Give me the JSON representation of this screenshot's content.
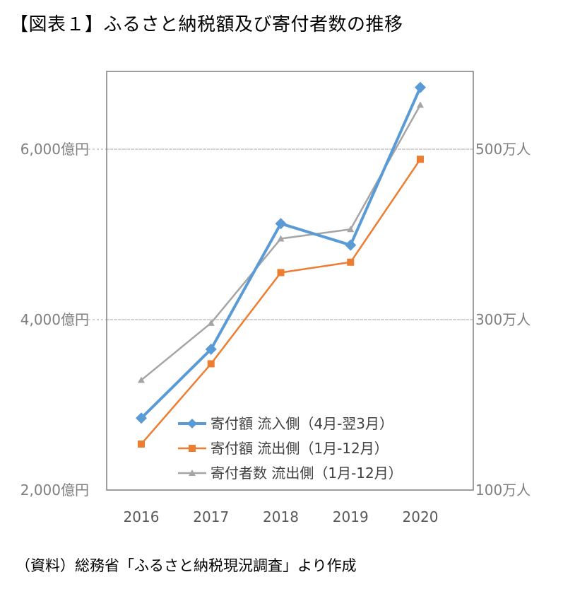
{
  "title": "【図表１】ふるさと納税額及び寄付者数の推移",
  "source": "（資料）総務省「ふるさと納税現況調査」より作成",
  "chart_data": {
    "type": "line",
    "categories": [
      "2016",
      "2017",
      "2018",
      "2019",
      "2020"
    ],
    "y_left": {
      "ticks": [
        {
          "value": 2000,
          "label": "2,000億円"
        },
        {
          "value": 4000,
          "label": "4,000億円"
        },
        {
          "value": 6000,
          "label": "6,000億円"
        }
      ],
      "range": [
        2000,
        6800
      ]
    },
    "y_right": {
      "ticks": [
        {
          "value": 100,
          "label": "100万人"
        },
        {
          "value": 300,
          "label": "300万人"
        },
        {
          "value": 500,
          "label": "500万人"
        }
      ],
      "range": [
        100,
        580
      ]
    },
    "grid": "dashed horizontal at 4,000億円 and 6,000億円",
    "legend_position": "bottom-right inside plot",
    "series": [
      {
        "name": "寄付額  流入側（4月-翌3月）",
        "axis": "left",
        "color": "#5b9bd5",
        "marker": "diamond",
        "values": [
          2844,
          3653,
          5127,
          4875,
          6725
        ]
      },
      {
        "name": "寄付額  流出側（1月-12月）",
        "axis": "left",
        "color": "#ed7d31",
        "marker": "square",
        "values": [
          2540,
          3482,
          4552,
          4674,
          5882
        ]
      },
      {
        "name": "寄付者数  流出側（1月-12月）",
        "axis": "right",
        "color": "#a5a5a5",
        "marker": "triangle",
        "values": [
          229,
          296,
          395,
          406,
          552
        ]
      }
    ]
  }
}
